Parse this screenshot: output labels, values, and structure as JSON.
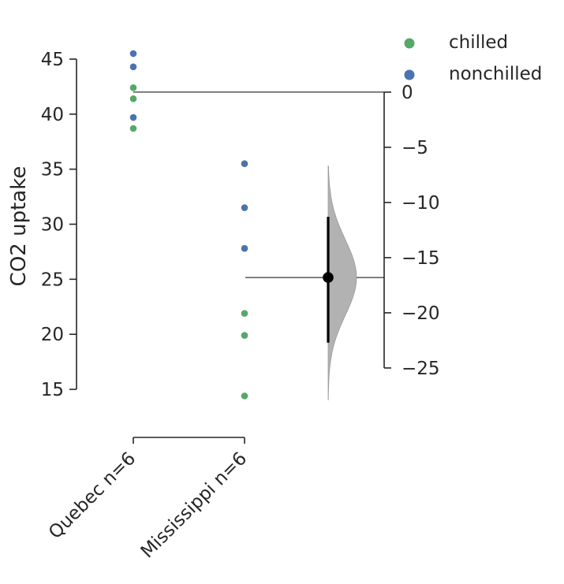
{
  "chart_data": {
    "type": "scatter",
    "subtype": "estimation-plot (swarm + bootstrap mean difference)",
    "ylabel": "CO2 uptake",
    "ylim": [
      15,
      45
    ],
    "left_yticks": [
      15,
      20,
      25,
      30,
      35,
      40,
      45
    ],
    "categories": [
      "Quebec n=6",
      "Mississippi n=6"
    ],
    "series": [
      {
        "name": "chilled",
        "color": "#55a868",
        "points": [
          {
            "group": "Quebec n=6",
            "y": 42.4
          },
          {
            "group": "Quebec n=6",
            "y": 41.4
          },
          {
            "group": "Quebec n=6",
            "y": 38.7
          },
          {
            "group": "Mississippi n=6",
            "y": 21.9
          },
          {
            "group": "Mississippi n=6",
            "y": 19.9
          },
          {
            "group": "Mississippi n=6",
            "y": 14.4
          }
        ]
      },
      {
        "name": "nonchilled",
        "color": "#4c72b0",
        "points": [
          {
            "group": "Quebec n=6",
            "y": 45.5
          },
          {
            "group": "Quebec n=6",
            "y": 44.3
          },
          {
            "group": "Quebec n=6",
            "y": 39.7
          },
          {
            "group": "Mississippi n=6",
            "y": 35.5
          },
          {
            "group": "Mississippi n=6",
            "y": 31.5
          },
          {
            "group": "Mississippi n=6",
            "y": 27.8
          }
        ]
      }
    ],
    "difference_axis": {
      "ylim": [
        -25,
        0
      ],
      "ticks": [
        0,
        -5,
        -10,
        -15,
        -20,
        -25
      ],
      "reference_value": 0,
      "mean_difference": -16.8,
      "ci": [
        -22.7,
        -11.3
      ],
      "bootstrap_range": [
        -27.9,
        -6.7
      ],
      "distribution_color": "#b2b2b2",
      "point_color": "#000000"
    },
    "legend": {
      "position": "top-right",
      "entries": [
        "chilled",
        "nonchilled"
      ]
    },
    "grid": false
  }
}
